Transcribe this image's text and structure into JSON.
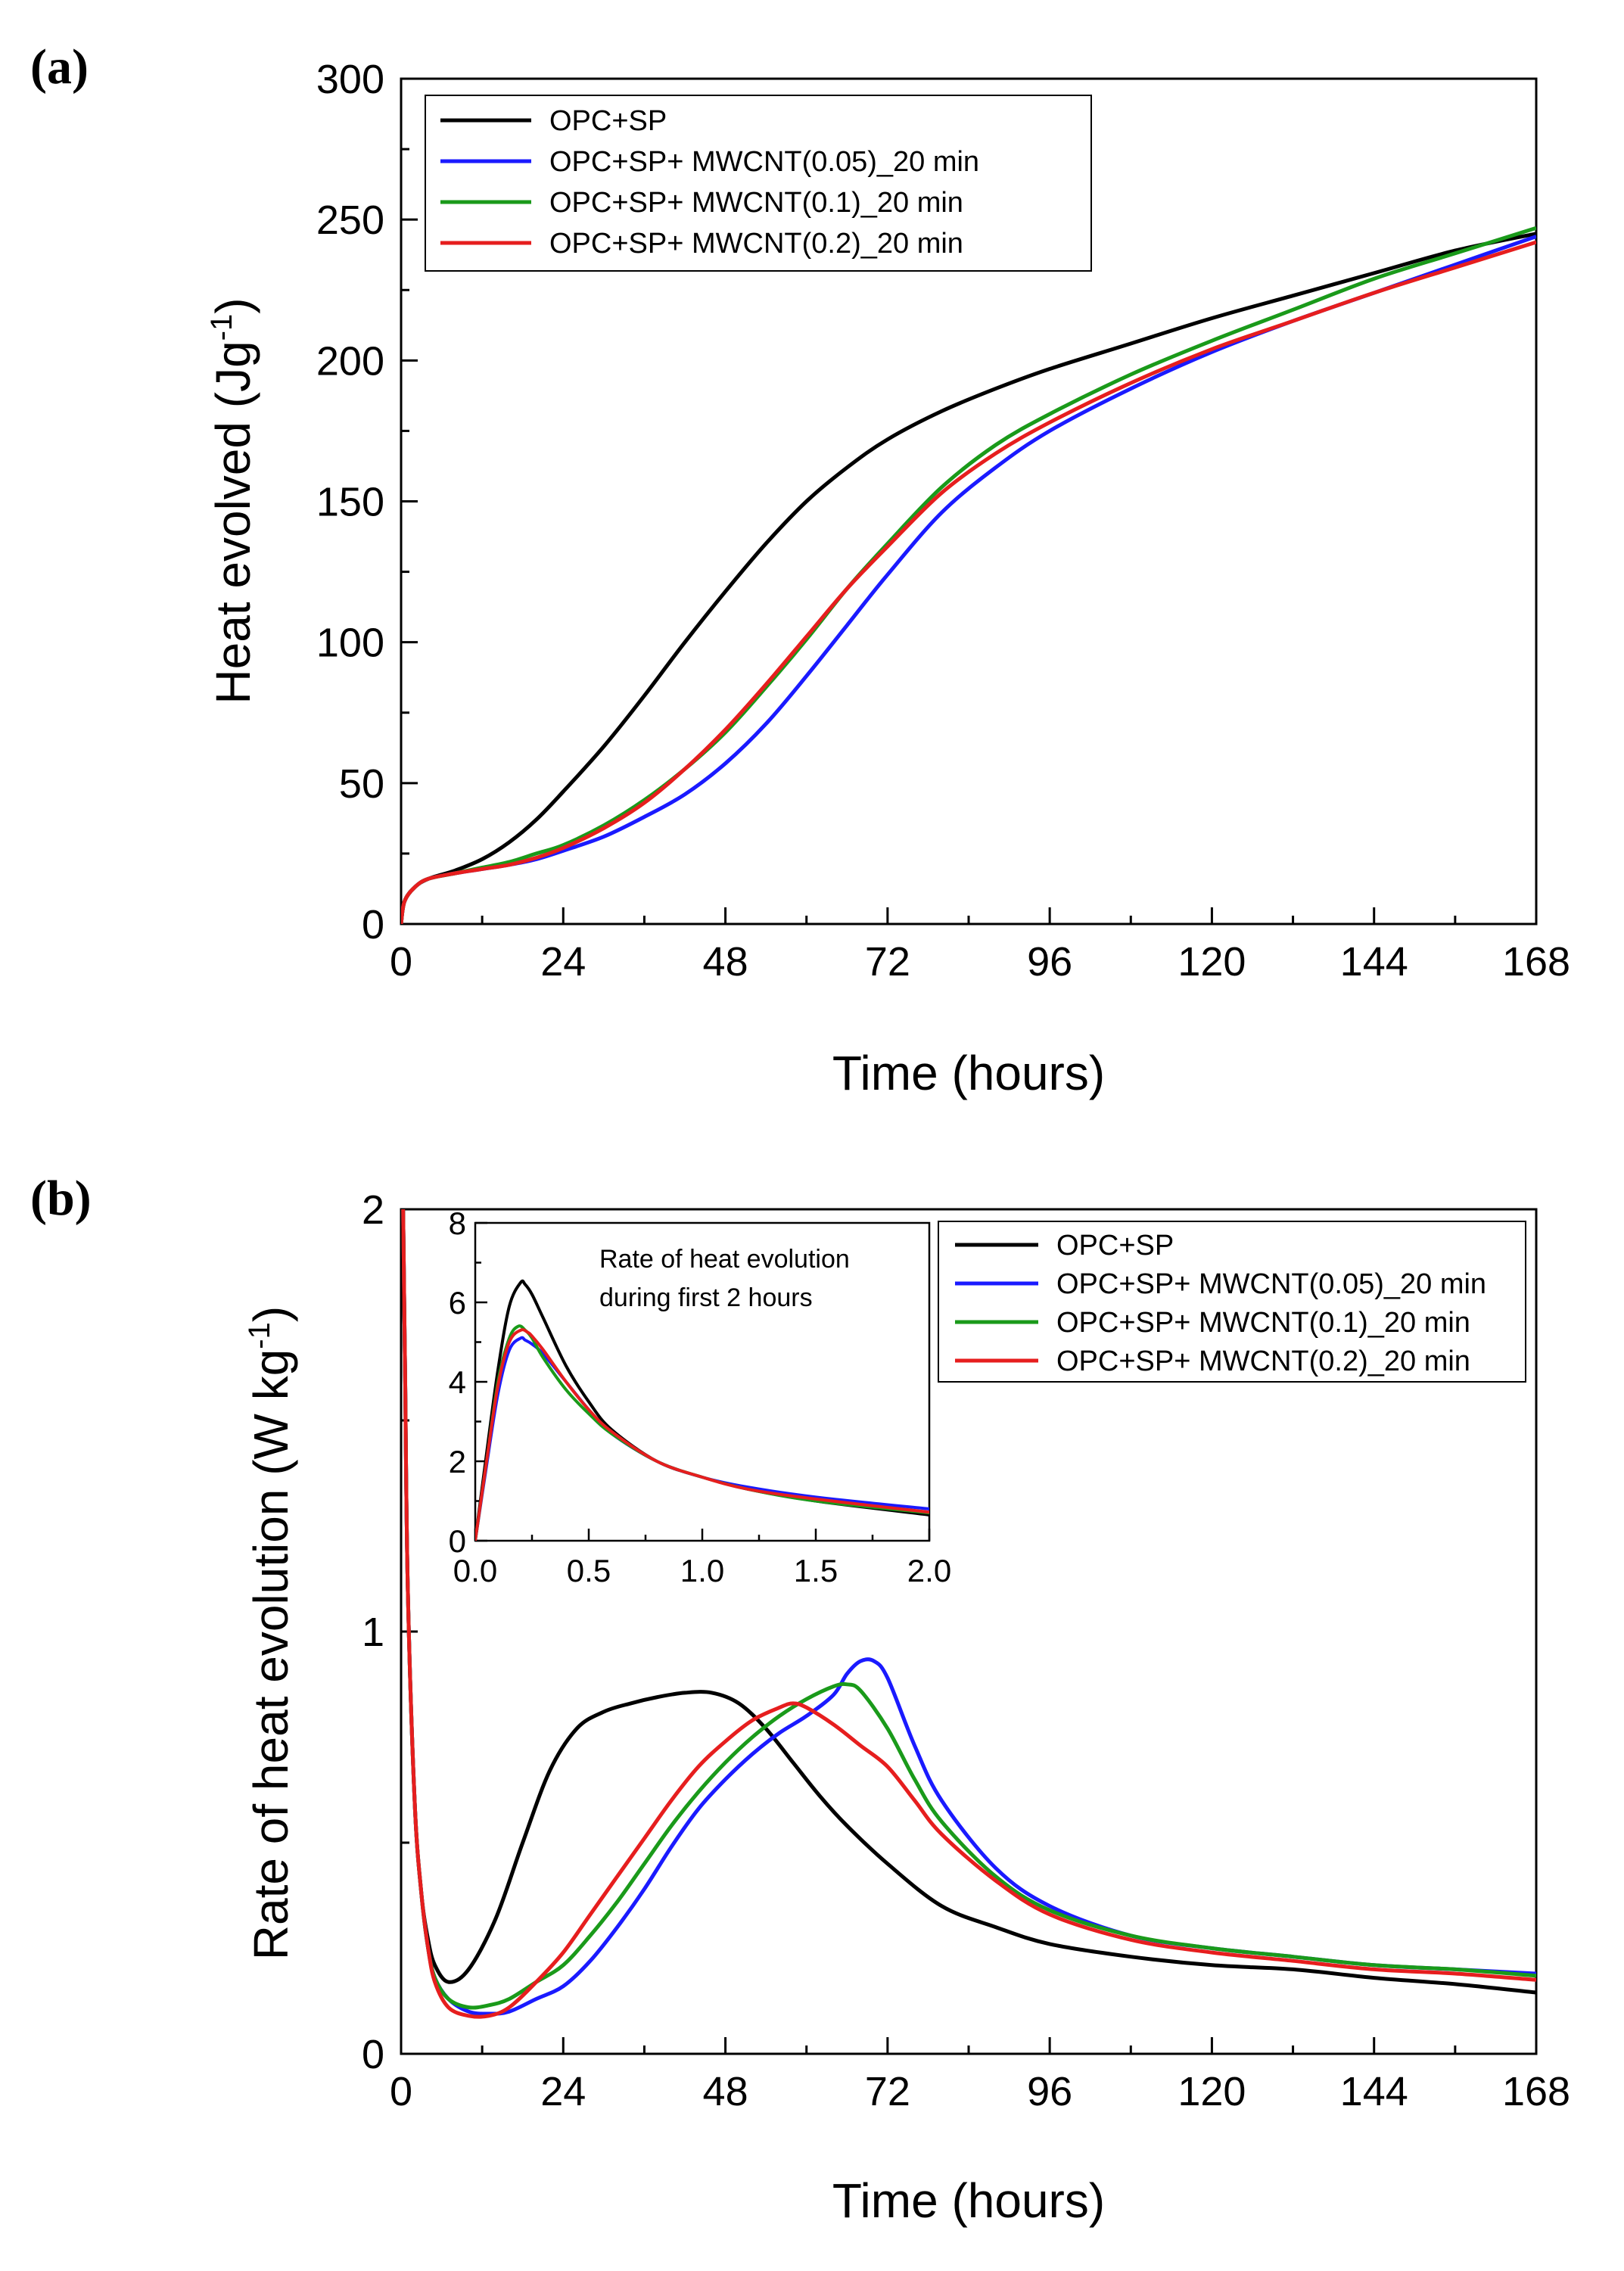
{
  "chart_data": [
    {
      "type": "line",
      "panel_label": "(a)",
      "xlabel": "Time (hours)",
      "ylabel": "Heat evolved (Jg",
      "ylabel_sup": "-1",
      "ylabel_close": ")",
      "xlim": [
        0,
        168
      ],
      "ylim": [
        0,
        300
      ],
      "xticks": [
        0,
        24,
        48,
        72,
        96,
        120,
        144,
        168
      ],
      "yticks": [
        0,
        50,
        100,
        150,
        200,
        250,
        300
      ],
      "legend_position": "top-left",
      "series": [
        {
          "name": "OPC+SP",
          "color": "#000000",
          "x": [
            0,
            0.5,
            2,
            4,
            8,
            12,
            16,
            20,
            24,
            30,
            36,
            42,
            48,
            54,
            60,
            66,
            72,
            80,
            88,
            96,
            108,
            120,
            132,
            144,
            156,
            168
          ],
          "y": [
            0,
            8,
            13,
            16,
            19,
            23,
            29,
            37,
            47,
            63,
            81,
            100,
            118,
            135,
            150,
            162,
            172,
            182,
            190,
            197,
            206,
            215,
            223,
            231,
            239,
            245
          ]
        },
        {
          "name": "OPC+SP+ MWCNT(0.05)_20 min",
          "color": "#1a1aff",
          "x": [
            0,
            0.5,
            2,
            4,
            8,
            12,
            16,
            20,
            24,
            30,
            36,
            42,
            48,
            54,
            60,
            66,
            72,
            80,
            88,
            96,
            108,
            120,
            132,
            144,
            156,
            168
          ],
          "y": [
            0,
            8,
            13,
            16,
            18,
            19.5,
            21,
            23,
            26,
            31,
            38,
            46,
            57,
            71,
            88,
            106,
            124,
            146,
            162,
            175,
            190,
            203,
            214,
            224,
            234,
            244
          ]
        },
        {
          "name": "OPC+SP+ MWCNT(0.1)_20 min",
          "color": "#1a9a1a",
          "x": [
            0,
            0.5,
            2,
            4,
            8,
            12,
            16,
            20,
            24,
            30,
            36,
            42,
            48,
            54,
            60,
            66,
            72,
            80,
            88,
            96,
            108,
            120,
            132,
            144,
            156,
            168
          ],
          "y": [
            0,
            8,
            13,
            16,
            18,
            20,
            22,
            25,
            28,
            35,
            44,
            55,
            68,
            84,
            101,
            119,
            135,
            155,
            170,
            181,
            195,
            207,
            218,
            229,
            238,
            247
          ]
        },
        {
          "name": "OPC+SP+ MWCNT(0.2)_20 min",
          "color": "#e61e1e",
          "x": [
            0,
            0.5,
            2,
            4,
            8,
            12,
            16,
            20,
            24,
            30,
            36,
            42,
            48,
            54,
            60,
            66,
            72,
            80,
            88,
            96,
            108,
            120,
            132,
            144,
            156,
            168
          ],
          "y": [
            0,
            8,
            13,
            16,
            18,
            19.5,
            21,
            23.5,
            27,
            34,
            43,
            55,
            69,
            85,
            102,
            119,
            134,
            153,
            167,
            178,
            192,
            204,
            214,
            224,
            233,
            242
          ]
        }
      ]
    },
    {
      "type": "line",
      "panel_label": "(b)",
      "xlabel": "Time (hours)",
      "ylabel": "Rate of heat evolution (W kg",
      "ylabel_sup": "-1",
      "ylabel_close": ")",
      "xlim": [
        0,
        168
      ],
      "ylim": [
        0,
        2
      ],
      "xticks": [
        0,
        24,
        48,
        72,
        96,
        120,
        144,
        168
      ],
      "yticks": [
        0,
        1,
        2
      ],
      "legend_position": "top-right",
      "series": [
        {
          "name": "OPC+SP",
          "color": "#000000",
          "x": [
            0.3,
            0.6,
            1,
            2,
            3,
            4,
            5,
            7,
            10,
            14,
            18,
            22,
            26,
            30,
            34,
            38,
            42,
            46,
            50,
            54,
            58,
            62,
            66,
            72,
            80,
            88,
            96,
            108,
            120,
            132,
            144,
            156,
            168
          ],
          "y": [
            2,
            1.6,
            1.1,
            0.6,
            0.38,
            0.27,
            0.21,
            0.17,
            0.2,
            0.32,
            0.5,
            0.67,
            0.77,
            0.81,
            0.83,
            0.845,
            0.855,
            0.855,
            0.83,
            0.77,
            0.69,
            0.61,
            0.54,
            0.45,
            0.35,
            0.3,
            0.26,
            0.23,
            0.21,
            0.2,
            0.18,
            0.165,
            0.145
          ]
        },
        {
          "name": "OPC+SP+ MWCNT(0.05)_20 min",
          "color": "#1a1aff",
          "x": [
            0.3,
            0.6,
            1,
            2,
            3,
            4,
            5,
            7,
            10,
            13,
            16,
            20,
            24,
            28,
            32,
            36,
            40,
            44,
            48,
            52,
            56,
            60,
            64,
            66,
            68,
            70,
            72,
            76,
            80,
            88,
            96,
            108,
            120,
            132,
            144,
            156,
            168
          ],
          "y": [
            2,
            1.6,
            1.1,
            0.6,
            0.38,
            0.25,
            0.18,
            0.13,
            0.1,
            0.095,
            0.1,
            0.13,
            0.16,
            0.22,
            0.3,
            0.39,
            0.49,
            0.58,
            0.65,
            0.71,
            0.76,
            0.8,
            0.85,
            0.9,
            0.93,
            0.93,
            0.89,
            0.73,
            0.6,
            0.44,
            0.35,
            0.28,
            0.25,
            0.23,
            0.21,
            0.2,
            0.19
          ]
        },
        {
          "name": "OPC+SP+ MWCNT(0.1)_20 min",
          "color": "#1a9a1a",
          "x": [
            0.3,
            0.6,
            1,
            2,
            3,
            4,
            5,
            7,
            10,
            13,
            16,
            20,
            24,
            28,
            32,
            36,
            40,
            44,
            48,
            52,
            56,
            60,
            64,
            66,
            68,
            72,
            76,
            80,
            88,
            96,
            108,
            120,
            132,
            144,
            156,
            168
          ],
          "y": [
            2,
            1.6,
            1.1,
            0.6,
            0.38,
            0.25,
            0.18,
            0.13,
            0.11,
            0.115,
            0.13,
            0.17,
            0.21,
            0.28,
            0.36,
            0.45,
            0.54,
            0.62,
            0.69,
            0.75,
            0.8,
            0.84,
            0.87,
            0.875,
            0.86,
            0.77,
            0.65,
            0.55,
            0.42,
            0.34,
            0.28,
            0.25,
            0.23,
            0.21,
            0.2,
            0.185
          ]
        },
        {
          "name": "OPC+SP+ MWCNT(0.2)_20 min",
          "color": "#e61e1e",
          "x": [
            0.3,
            0.6,
            1,
            2,
            3,
            4,
            5,
            7,
            10,
            13,
            16,
            20,
            24,
            28,
            32,
            36,
            40,
            44,
            48,
            52,
            56,
            58,
            60,
            64,
            68,
            72,
            76,
            80,
            88,
            96,
            108,
            120,
            132,
            144,
            156,
            168
          ],
          "y": [
            2,
            1.6,
            1.1,
            0.6,
            0.38,
            0.25,
            0.17,
            0.11,
            0.09,
            0.09,
            0.11,
            0.17,
            0.24,
            0.33,
            0.42,
            0.51,
            0.6,
            0.68,
            0.74,
            0.79,
            0.82,
            0.83,
            0.82,
            0.78,
            0.73,
            0.68,
            0.6,
            0.52,
            0.41,
            0.33,
            0.27,
            0.24,
            0.22,
            0.2,
            0.19,
            0.175
          ]
        }
      ],
      "inset": {
        "title_line1": "Rate of heat evolution",
        "title_line2": "during first 2 hours",
        "xlim": [
          0,
          2
        ],
        "ylim": [
          0,
          8
        ],
        "xticks": [
          0.0,
          0.5,
          1.0,
          1.5,
          2.0
        ],
        "xtick_labels": [
          "0.0",
          "0.5",
          "1.0",
          "1.5",
          "2.0"
        ],
        "yticks": [
          0,
          2,
          4,
          6,
          8
        ],
        "series": [
          {
            "name": "OPC+SP",
            "color": "#000000",
            "x": [
              0,
              0.05,
              0.1,
              0.15,
              0.2,
              0.22,
              0.25,
              0.3,
              0.4,
              0.5,
              0.6,
              0.8,
              1.0,
              1.2,
              1.5,
              2.0
            ],
            "y": [
              0,
              2.2,
              4.3,
              5.9,
              6.5,
              6.45,
              6.2,
              5.6,
              4.4,
              3.5,
              2.8,
              2.0,
              1.6,
              1.3,
              1.0,
              0.65
            ]
          },
          {
            "name": "OPC+SP+ MWCNT(0.05)_20 min",
            "color": "#1a1aff",
            "x": [
              0,
              0.05,
              0.1,
              0.15,
              0.2,
              0.22,
              0.25,
              0.3,
              0.4,
              0.5,
              0.6,
              0.8,
              1.0,
              1.2,
              1.5,
              2.0
            ],
            "y": [
              0,
              1.9,
              3.7,
              4.8,
              5.1,
              5.05,
              4.95,
              4.7,
              4.0,
              3.3,
              2.7,
              2.0,
              1.6,
              1.35,
              1.1,
              0.8
            ]
          },
          {
            "name": "OPC+SP+ MWCNT(0.1)_20 min",
            "color": "#1a9a1a",
            "x": [
              0,
              0.05,
              0.1,
              0.15,
              0.19,
              0.22,
              0.25,
              0.3,
              0.4,
              0.5,
              0.6,
              0.8,
              1.0,
              1.2,
              1.5,
              2.0
            ],
            "y": [
              0,
              2.0,
              4.0,
              5.1,
              5.4,
              5.3,
              5.1,
              4.6,
              3.8,
              3.2,
              2.7,
              2.0,
              1.6,
              1.3,
              1.0,
              0.7
            ]
          },
          {
            "name": "OPC+SP+ MWCNT(0.2)_20 min",
            "color": "#e61e1e",
            "x": [
              0,
              0.05,
              0.1,
              0.15,
              0.2,
              0.23,
              0.25,
              0.3,
              0.4,
              0.5,
              0.6,
              0.8,
              1.0,
              1.2,
              1.5,
              2.0
            ],
            "y": [
              0,
              2.0,
              3.9,
              5.0,
              5.3,
              5.25,
              5.15,
              4.8,
              4.0,
              3.3,
              2.75,
              2.0,
              1.6,
              1.3,
              1.05,
              0.72
            ]
          }
        ]
      }
    }
  ]
}
